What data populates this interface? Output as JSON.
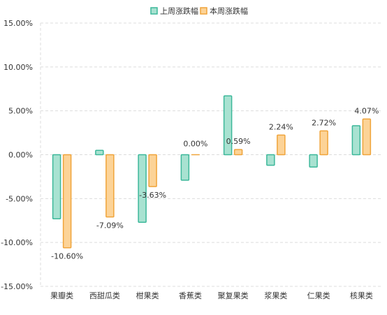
{
  "chart_data": {
    "type": "bar",
    "categories": [
      "果瓣类",
      "西甜瓜类",
      "柑果类",
      "香蕉类",
      "聚复果类",
      "浆果类",
      "仁果类",
      "核果类"
    ],
    "series": [
      {
        "name": "上周涨跌幅",
        "color": "#3cb89a",
        "fill": "#a8e2d1",
        "values": [
          -7.3,
          0.5,
          -7.7,
          -2.9,
          6.7,
          -1.2,
          -1.4,
          3.3
        ]
      },
      {
        "name": "本周涨跌幅",
        "color": "#f0a43a",
        "fill": "#fcd397",
        "values": [
          -10.6,
          -7.09,
          -3.63,
          0.0,
          0.59,
          2.24,
          2.72,
          4.07
        ],
        "labels": [
          "-10.60%",
          "-7.09%",
          "-3.63%",
          "0.00%",
          "0.59%",
          "2.24%",
          "2.72%",
          "4.07%"
        ]
      }
    ],
    "ylim": [
      -15,
      15
    ],
    "yticks": [
      15,
      10,
      5,
      0,
      -5,
      -10,
      -15
    ],
    "ytick_labels": [
      "15.00%",
      "10.00%",
      "5.00%",
      "0.00%",
      "-5.00%",
      "-10.00%",
      "-15.00%"
    ],
    "legend_position": "top-center",
    "grid": true,
    "title": "",
    "xlabel": "",
    "ylabel": ""
  }
}
